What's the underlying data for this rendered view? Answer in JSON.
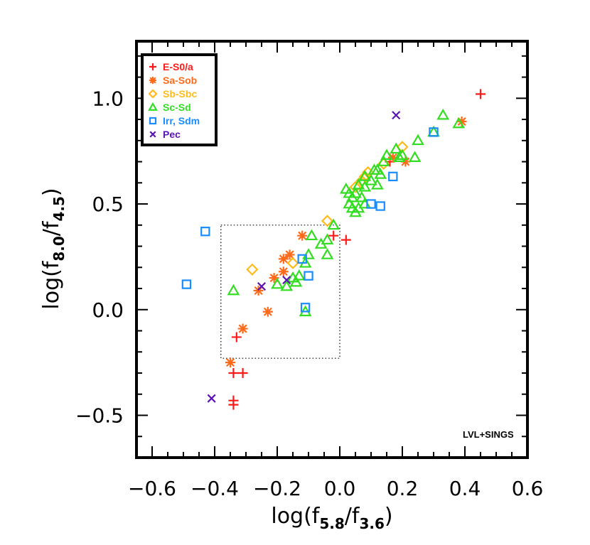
{
  "chart_data": {
    "type": "scatter",
    "xlabel": {
      "base": "log(f",
      "sub1": "5.8",
      "mid": "/f",
      "sub2": "3.6",
      "end": ")"
    },
    "ylabel": {
      "base": "log(f",
      "sub1": "8.0",
      "mid": "/f",
      "sub2": "4.5",
      "end": ")"
    },
    "xlim": [
      -0.65,
      0.6
    ],
    "ylim": [
      -0.7,
      1.27
    ],
    "xticks": [
      -0.6,
      -0.4,
      -0.2,
      0.0,
      0.2,
      0.4,
      0.6
    ],
    "xtick_labels": [
      "−0.6",
      "−0.4",
      "−0.2",
      "0.0",
      "0.2",
      "0.4",
      "0.6"
    ],
    "yticks": [
      -0.5,
      0.0,
      0.5,
      1.0
    ],
    "ytick_labels": [
      "−0.5",
      "0.0",
      "0.5",
      "1.0"
    ],
    "annotation": "LVL+SINGS",
    "box": {
      "x0": -0.38,
      "x1": 0.0,
      "y0": -0.23,
      "y1": 0.4
    },
    "series": [
      {
        "name": "E-S0/a",
        "marker": "plus",
        "color": "#ff1a1a",
        "points": [
          [
            0.45,
            1.02
          ],
          [
            0.16,
            0.7
          ],
          [
            0.02,
            0.33
          ],
          [
            -0.02,
            0.35
          ],
          [
            -0.33,
            -0.13
          ],
          [
            -0.34,
            -0.3
          ],
          [
            -0.31,
            -0.3
          ],
          [
            -0.34,
            -0.43
          ],
          [
            -0.34,
            -0.45
          ]
        ]
      },
      {
        "name": "Sa-Sob",
        "marker": "asterisk",
        "color": "#ff6a1a",
        "points": [
          [
            0.39,
            0.89
          ],
          [
            0.21,
            0.7
          ],
          [
            0.17,
            0.72
          ],
          [
            -0.12,
            0.35
          ],
          [
            -0.16,
            0.26
          ],
          [
            -0.18,
            0.24
          ],
          [
            -0.18,
            0.18
          ],
          [
            -0.21,
            0.15
          ],
          [
            -0.26,
            0.09
          ],
          [
            -0.23,
            -0.01
          ],
          [
            -0.31,
            -0.09
          ],
          [
            -0.35,
            -0.25
          ]
        ]
      },
      {
        "name": "Sb-Sbc",
        "marker": "diamond",
        "color": "#ffbb1a",
        "points": [
          [
            0.2,
            0.77
          ],
          [
            0.14,
            0.69
          ],
          [
            0.09,
            0.65
          ],
          [
            0.08,
            0.63
          ],
          [
            0.07,
            0.61
          ],
          [
            0.05,
            0.58
          ],
          [
            -0.04,
            0.42
          ],
          [
            -0.28,
            0.19
          ],
          [
            -0.15,
            0.22
          ]
        ]
      },
      {
        "name": "Sc-Sd",
        "marker": "triangle",
        "color": "#33dd22",
        "points": [
          [
            0.33,
            0.92
          ],
          [
            0.38,
            0.88
          ],
          [
            0.3,
            0.84
          ],
          [
            0.25,
            0.8
          ],
          [
            0.24,
            0.72
          ],
          [
            0.2,
            0.73
          ],
          [
            0.18,
            0.76
          ],
          [
            0.19,
            0.72
          ],
          [
            0.15,
            0.73
          ],
          [
            0.14,
            0.7
          ],
          [
            0.12,
            0.66
          ],
          [
            0.13,
            0.64
          ],
          [
            0.11,
            0.66
          ],
          [
            0.1,
            0.61
          ],
          [
            0.12,
            0.59
          ],
          [
            0.08,
            0.63
          ],
          [
            0.08,
            0.58
          ],
          [
            0.06,
            0.59
          ],
          [
            0.05,
            0.55
          ],
          [
            0.07,
            0.53
          ],
          [
            0.04,
            0.53
          ],
          [
            0.03,
            0.55
          ],
          [
            0.03,
            0.5
          ],
          [
            0.04,
            0.48
          ],
          [
            0.06,
            0.48
          ],
          [
            0.08,
            0.5
          ],
          [
            0.05,
            0.46
          ],
          [
            0.02,
            0.57
          ],
          [
            -0.02,
            0.4
          ],
          [
            -0.04,
            0.33
          ],
          [
            -0.09,
            0.35
          ],
          [
            -0.06,
            0.31
          ],
          [
            -0.1,
            0.26
          ],
          [
            -0.04,
            0.26
          ],
          [
            -0.11,
            0.22
          ],
          [
            -0.13,
            0.16
          ],
          [
            -0.15,
            0.15
          ],
          [
            -0.14,
            0.13
          ],
          [
            -0.17,
            0.11
          ],
          [
            -0.2,
            0.12
          ],
          [
            -0.34,
            0.09
          ],
          [
            -0.11,
            -0.01
          ]
        ]
      },
      {
        "name": "Irr, Sdm",
        "marker": "square",
        "color": "#1a8cff",
        "points": [
          [
            0.3,
            0.84
          ],
          [
            0.17,
            0.63
          ],
          [
            0.1,
            0.5
          ],
          [
            0.13,
            0.49
          ],
          [
            -0.43,
            0.37
          ],
          [
            -0.12,
            0.24
          ],
          [
            -0.1,
            0.16
          ],
          [
            -0.11,
            0.01
          ],
          [
            -0.49,
            0.12
          ]
        ]
      },
      {
        "name": "Pec",
        "marker": "x",
        "color": "#5a14b4",
        "points": [
          [
            0.18,
            0.92
          ],
          [
            -0.17,
            0.14
          ],
          [
            -0.25,
            0.11
          ],
          [
            -0.41,
            -0.42
          ]
        ]
      }
    ]
  }
}
